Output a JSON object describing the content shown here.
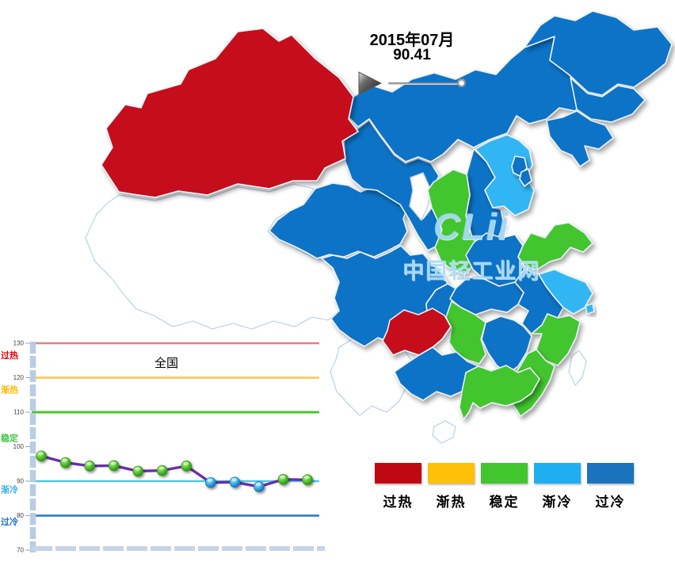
{
  "header": {
    "date": "2015年07月",
    "value": "90.41"
  },
  "watermark": {
    "logo": "CLii",
    "site_name": "中国轻工业网"
  },
  "legend": {
    "items": [
      {
        "label": "过热",
        "status": "overheat",
        "color": "#C00812"
      },
      {
        "label": "渐热",
        "status": "warming",
        "color": "#FFC008"
      },
      {
        "label": "稳定",
        "status": "stable",
        "color": "#42C52E"
      },
      {
        "label": "渐冷",
        "status": "cooling",
        "color": "#1FAEF0"
      },
      {
        "label": "过冷",
        "status": "overcool",
        "color": "#1B73BE"
      }
    ]
  },
  "map": {
    "status_colors": {
      "overheat": "#C5101A",
      "warming": "#FFC008",
      "stable": "#42C52E",
      "cooling": "#30B6F3",
      "overcool": "#1173C6",
      "none": "#FFFFFF"
    },
    "provinces": [
      {
        "id": "tibet",
        "status": "none"
      },
      {
        "id": "yunnan",
        "status": "none"
      },
      {
        "id": "hainan",
        "status": "none"
      },
      {
        "id": "taiwan",
        "status": "none"
      },
      {
        "id": "ningxia",
        "status": "none"
      },
      {
        "id": "qinghai",
        "status": "overcool"
      },
      {
        "id": "gansu",
        "status": "overcool"
      },
      {
        "id": "inner-mongolia",
        "status": "overcool"
      },
      {
        "id": "heilongjiang",
        "status": "overcool"
      },
      {
        "id": "jilin",
        "status": "overcool"
      },
      {
        "id": "liaoning",
        "status": "overcool"
      },
      {
        "id": "shanxi",
        "status": "overcool"
      },
      {
        "id": "hebei",
        "status": "cooling"
      },
      {
        "id": "beijing",
        "status": "overcool"
      },
      {
        "id": "tianjin",
        "status": "overcool"
      },
      {
        "id": "shaanxi",
        "status": "stable"
      },
      {
        "id": "sichuan",
        "status": "overcool"
      },
      {
        "id": "chongqing",
        "status": "overcool"
      },
      {
        "id": "henan",
        "status": "overcool"
      },
      {
        "id": "shandong",
        "status": "stable"
      },
      {
        "id": "hubei",
        "status": "overcool"
      },
      {
        "id": "anhui",
        "status": "overcool"
      },
      {
        "id": "jiangsu",
        "status": "cooling"
      },
      {
        "id": "shanghai",
        "status": "cooling"
      },
      {
        "id": "zhejiang",
        "status": "stable"
      },
      {
        "id": "hunan",
        "status": "stable"
      },
      {
        "id": "jiangxi",
        "status": "overcool"
      },
      {
        "id": "fujian",
        "status": "stable"
      },
      {
        "id": "guizhou",
        "status": "overheat"
      },
      {
        "id": "guangxi",
        "status": "overcool"
      },
      {
        "id": "guangdong",
        "status": "stable"
      },
      {
        "id": "xinjiang",
        "status": "overheat"
      }
    ]
  },
  "chart_data": {
    "type": "line",
    "title": "全国",
    "series": [
      {
        "name": "全国",
        "values": [
          97.3,
          95.4,
          94.4,
          94.5,
          92.9,
          93.1,
          94.4,
          89.6,
          89.7,
          88.4,
          90.5,
          90.41
        ]
      }
    ],
    "ylim": [
      70,
      130
    ],
    "yticks": [
      130,
      120,
      110,
      100,
      90,
      80,
      70
    ],
    "line_color": "#6B2FA8",
    "marker_rule": {
      "green_at_or_above": 90,
      "green": "#4CBE2D",
      "blue": "#35A8E0"
    },
    "zone_lines": [
      {
        "value": 130,
        "color": "#DF8183"
      },
      {
        "value": 120,
        "color": "#FFC34F"
      },
      {
        "value": 110,
        "color": "#4DC32F"
      },
      {
        "value": 90,
        "color": "#4FC7E8"
      },
      {
        "value": 80,
        "color": "#2277C8"
      }
    ],
    "zone_labels": [
      {
        "label": "过热",
        "color": "#E60008",
        "value": 126.5
      },
      {
        "label": "渐热",
        "color": "#FFB900",
        "value": 116.5
      },
      {
        "label": "稳定",
        "color": "#3EC53E",
        "value": 102.5
      },
      {
        "label": "渐冷",
        "color": "#35B0E8",
        "value": 87.6
      },
      {
        "label": "过冷",
        "color": "#1E70C8",
        "value": 78.3
      }
    ],
    "grid": false,
    "legend_position": "none"
  }
}
